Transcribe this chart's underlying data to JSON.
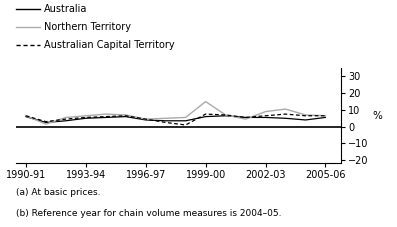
{
  "x_labels": [
    "1990-91",
    "1993-94",
    "1996-97",
    "1999-00",
    "2002-03",
    "2005-06"
  ],
  "x_values": [
    1990.5,
    1991.5,
    1992.5,
    1993.5,
    1994.5,
    1995.5,
    1996.5,
    1997.5,
    1998.5,
    1999.5,
    2000.5,
    2001.5,
    2002.5,
    2003.5,
    2004.5,
    2005.5
  ],
  "australia": [
    6.0,
    2.5,
    3.5,
    5.0,
    5.5,
    6.0,
    4.0,
    3.5,
    3.5,
    6.0,
    6.5,
    5.5,
    5.5,
    5.0,
    4.0,
    5.5
  ],
  "northern_territory": [
    6.5,
    1.5,
    5.5,
    6.5,
    7.5,
    7.0,
    4.5,
    5.0,
    5.5,
    15.0,
    7.0,
    4.5,
    9.0,
    10.5,
    7.0,
    6.5
  ],
  "act": [
    6.5,
    3.0,
    4.5,
    5.5,
    6.0,
    6.5,
    4.5,
    2.5,
    1.0,
    7.5,
    7.0,
    5.5,
    6.5,
    7.5,
    6.5,
    6.5
  ],
  "ylim": [
    -22,
    35
  ],
  "yticks": [
    -20,
    -10,
    0,
    10,
    20,
    30
  ],
  "ylabel": "%",
  "australia_color": "#000000",
  "nt_color": "#aaaaaa",
  "act_color": "#000000",
  "legend_australia": "Australia",
  "legend_nt": "Northern Territory",
  "legend_act": "Australian Capital Territory",
  "footnote1": "(a) At basic prices.",
  "footnote2": "(b) Reference year for chain volume measures is 2004–05.",
  "bg_color": "#ffffff"
}
